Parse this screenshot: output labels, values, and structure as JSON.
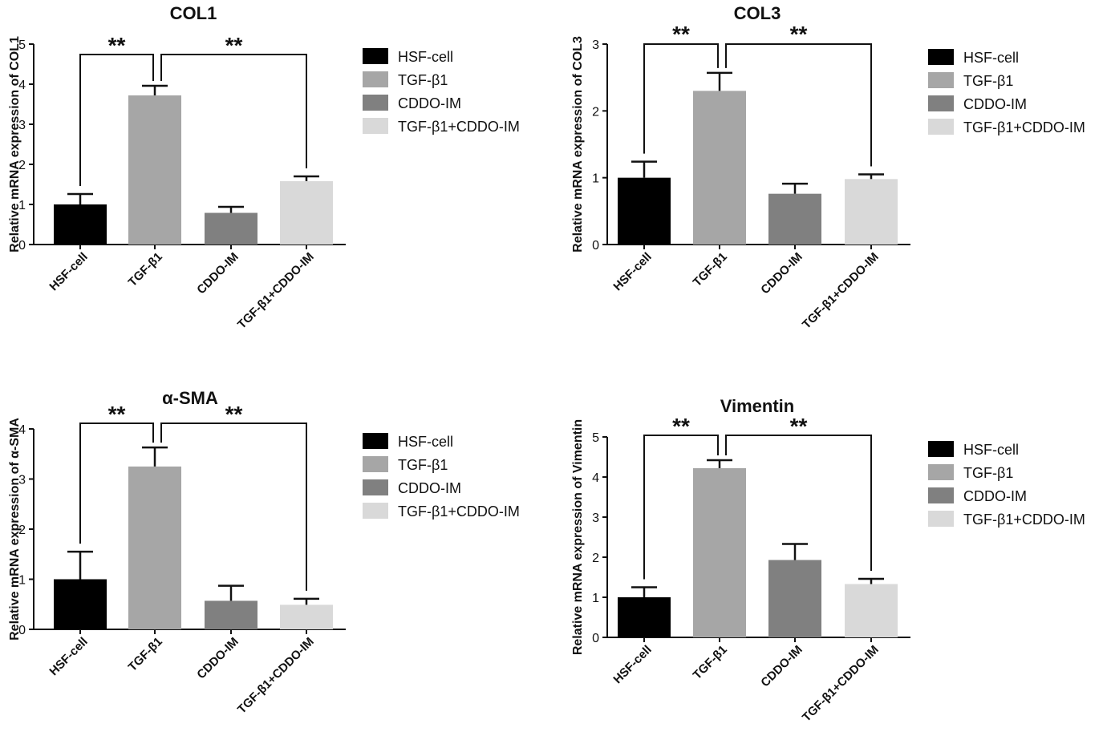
{
  "chart_data": [
    {
      "type": "bar",
      "title": "COL1",
      "ylabel": "Relative mRNA expression of COL1",
      "categories": [
        "HSF-cell",
        "TGF-β1",
        "CDDO-IM",
        "TGF-β1+CDDO-IM"
      ],
      "values": [
        1.0,
        3.72,
        0.79,
        1.58
      ],
      "errors": [
        0.26,
        0.24,
        0.15,
        0.12
      ],
      "ylim": [
        0,
        5
      ],
      "yticks": [
        "0",
        "1",
        "2",
        "3",
        "4",
        "5"
      ],
      "significance": [
        {
          "from": "HSF-cell",
          "to": "TGF-β1",
          "label": "**"
        },
        {
          "from": "TGF-β1",
          "to": "TGF-β1+CDDO-IM",
          "label": "**"
        }
      ],
      "legend": [
        "HSF-cell",
        "TGF-β1",
        "CDDO-IM",
        "TGF-β1+CDDO-IM"
      ],
      "colors": [
        "#000000",
        "#a6a6a6",
        "#808080",
        "#d9d9d9"
      ]
    },
    {
      "type": "bar",
      "title": "COL3",
      "ylabel": "Relative mRNA expression of COL3",
      "categories": [
        "HSF-cell",
        "TGF-β1",
        "CDDO-IM",
        "TGF-β1+CDDO-IM"
      ],
      "values": [
        1.0,
        2.3,
        0.76,
        0.98
      ],
      "errors": [
        0.24,
        0.27,
        0.15,
        0.07
      ],
      "ylim": [
        0,
        3
      ],
      "yticks": [
        "0",
        "1",
        "2",
        "3"
      ],
      "significance": [
        {
          "from": "HSF-cell",
          "to": "TGF-β1",
          "label": "**"
        },
        {
          "from": "TGF-β1",
          "to": "TGF-β1+CDDO-IM",
          "label": "**"
        }
      ],
      "legend": [
        "HSF-cell",
        "TGF-β1",
        "CDDO-IM",
        "TGF-β1+CDDO-IM"
      ],
      "colors": [
        "#000000",
        "#a6a6a6",
        "#808080",
        "#d9d9d9"
      ]
    },
    {
      "type": "bar",
      "title": "α-SMA",
      "ylabel": "Relative mRNA expression of α-SMA",
      "categories": [
        "HSF-cell",
        "TGF-β1",
        "CDDO-IM",
        "TGF-β1+CDDO-IM"
      ],
      "values": [
        1.0,
        3.25,
        0.57,
        0.49
      ],
      "errors": [
        0.55,
        0.38,
        0.3,
        0.12
      ],
      "ylim": [
        0,
        4
      ],
      "yticks": [
        "0",
        "1",
        "2",
        "3",
        "4"
      ],
      "significance": [
        {
          "from": "HSF-cell",
          "to": "TGF-β1",
          "label": "**"
        },
        {
          "from": "TGF-β1",
          "to": "TGF-β1+CDDO-IM",
          "label": "**"
        }
      ],
      "legend": [
        "HSF-cell",
        "TGF-β1",
        "CDDO-IM",
        "TGF-β1+CDDO-IM"
      ],
      "colors": [
        "#000000",
        "#a6a6a6",
        "#808080",
        "#d9d9d9"
      ]
    },
    {
      "type": "bar",
      "title": "Vimentin",
      "ylabel": "Relative mRNA expression of Vimentin",
      "categories": [
        "HSF-cell",
        "TGF-β1",
        "CDDO-IM",
        "TGF-β1+CDDO-IM"
      ],
      "values": [
        1.0,
        4.22,
        1.93,
        1.33
      ],
      "errors": [
        0.25,
        0.2,
        0.4,
        0.13
      ],
      "ylim": [
        0,
        5
      ],
      "yticks": [
        "0",
        "1",
        "2",
        "3",
        "4",
        "5"
      ],
      "significance": [
        {
          "from": "HSF-cell",
          "to": "TGF-β1",
          "label": "**"
        },
        {
          "from": "TGF-β1",
          "to": "TGF-β1+CDDO-IM",
          "label": "**"
        }
      ],
      "legend": [
        "HSF-cell",
        "TGF-β1",
        "CDDO-IM",
        "TGF-β1+CDDO-IM"
      ],
      "colors": [
        "#000000",
        "#a6a6a6",
        "#808080",
        "#d9d9d9"
      ]
    }
  ]
}
